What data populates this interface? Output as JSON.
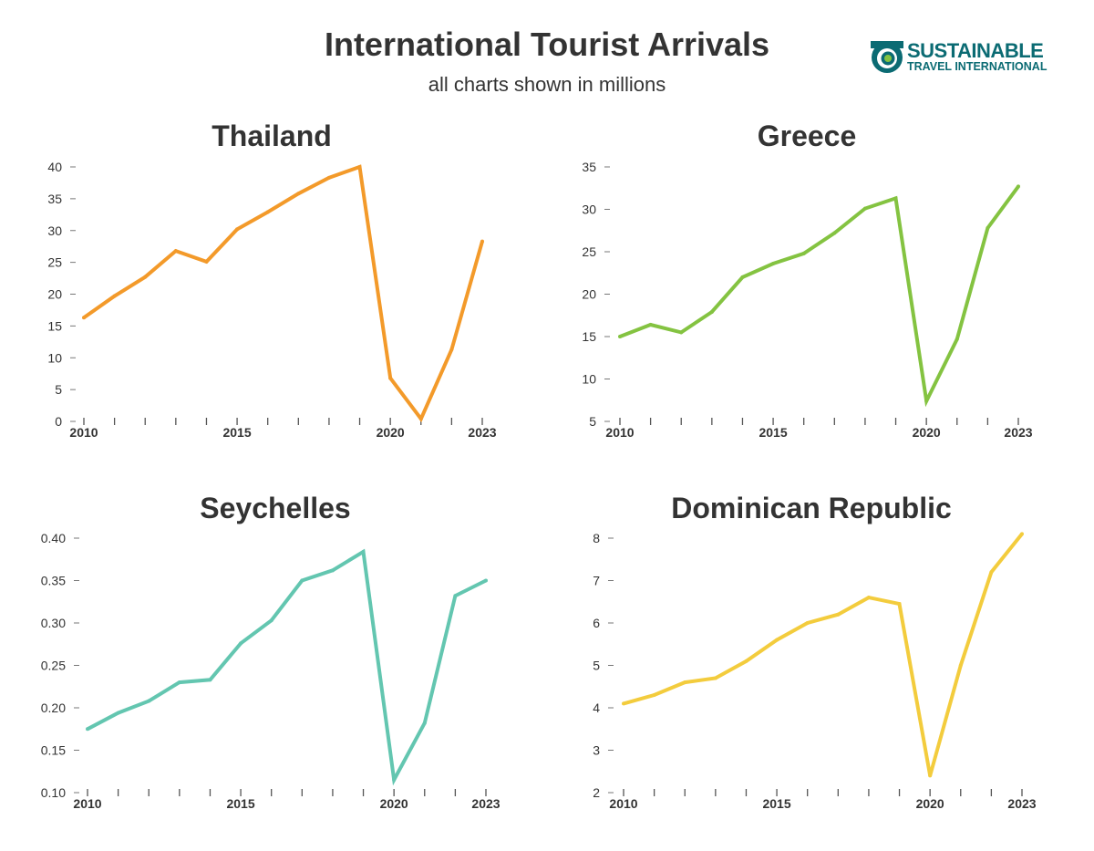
{
  "header": {
    "title": "International Tourist Arrivals",
    "subtitle": "all charts shown in millions"
  },
  "logo": {
    "line1": "SUSTAINABLE",
    "line2": "TRAVEL INTERNATIONAL",
    "icon": "globe-swirl-icon",
    "color": "#0b6b73"
  },
  "chart_data": [
    {
      "type": "line",
      "title": "Thailand",
      "color": "#f39a2a",
      "x": [
        2010,
        2011,
        2012,
        2013,
        2014,
        2015,
        2016,
        2017,
        2018,
        2019,
        2020,
        2021,
        2022,
        2023
      ],
      "values": [
        16.3,
        19.7,
        22.7,
        26.8,
        25.1,
        30.2,
        32.9,
        35.8,
        38.3,
        40.0,
        6.8,
        0.4,
        11.3,
        28.3
      ],
      "ylim": [
        0,
        40
      ],
      "yticks": [
        "0",
        "5",
        "10",
        "15",
        "20",
        "25",
        "30",
        "35",
        "40"
      ],
      "xtick_labels": [
        "2010",
        "2015",
        "2020",
        "2023"
      ]
    },
    {
      "type": "line",
      "title": "Greece",
      "color": "#84c341",
      "x": [
        2010,
        2011,
        2012,
        2013,
        2014,
        2015,
        2016,
        2017,
        2018,
        2019,
        2020,
        2021,
        2022,
        2023
      ],
      "values": [
        15.0,
        16.4,
        15.5,
        17.9,
        22.0,
        23.6,
        24.8,
        27.2,
        30.1,
        31.3,
        7.4,
        14.7,
        27.8,
        32.7
      ],
      "ylim": [
        5,
        35
      ],
      "yticks": [
        "5",
        "10",
        "15",
        "20",
        "25",
        "30",
        "35"
      ],
      "xtick_labels": [
        "2010",
        "2015",
        "2020",
        "2023"
      ]
    },
    {
      "type": "line",
      "title": "Seychelles",
      "color": "#63c6b0",
      "x": [
        2010,
        2011,
        2012,
        2013,
        2014,
        2015,
        2016,
        2017,
        2018,
        2019,
        2020,
        2021,
        2022,
        2023
      ],
      "values": [
        0.175,
        0.194,
        0.208,
        0.23,
        0.233,
        0.276,
        0.303,
        0.35,
        0.362,
        0.384,
        0.115,
        0.182,
        0.332,
        0.35
      ],
      "ylim": [
        0.1,
        0.4
      ],
      "yticks": [
        "0.10",
        "0.15",
        "0.20",
        "0.25",
        "0.30",
        "0.35",
        "0.40"
      ],
      "xtick_labels": [
        "2010",
        "2015",
        "2020",
        "2023"
      ]
    },
    {
      "type": "line",
      "title": "Dominican Republic",
      "color": "#f3cc3d",
      "x": [
        2010,
        2011,
        2012,
        2013,
        2014,
        2015,
        2016,
        2017,
        2018,
        2019,
        2020,
        2021,
        2022,
        2023
      ],
      "values": [
        4.1,
        4.3,
        4.6,
        4.7,
        5.1,
        5.6,
        6.0,
        6.2,
        6.6,
        6.45,
        2.4,
        5.0,
        7.2,
        8.1
      ],
      "ylim": [
        2,
        8
      ],
      "yticks": [
        "2",
        "3",
        "4",
        "5",
        "6",
        "7",
        "8"
      ],
      "xtick_labels": [
        "2010",
        "2015",
        "2020",
        "2023"
      ]
    }
  ]
}
